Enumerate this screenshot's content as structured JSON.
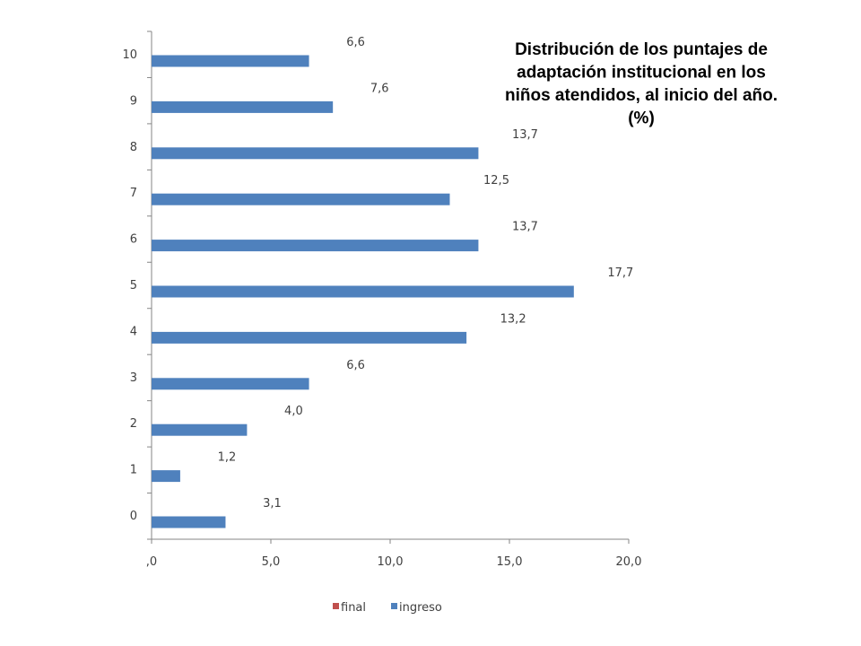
{
  "chart_data": {
    "type": "bar",
    "orientation": "horizontal",
    "title_lines": [
      "Distribución de los puntajes de",
      "adaptación institucional en los",
      "niños atendidos, al inicio del año.",
      "(%)"
    ],
    "categories": [
      "0",
      "1",
      "2",
      "3",
      "4",
      "5",
      "6",
      "7",
      "8",
      "9",
      "10"
    ],
    "series": [
      {
        "name": "final",
        "color": "#c0504d",
        "values": [
          null,
          null,
          null,
          null,
          null,
          null,
          null,
          null,
          null,
          null,
          null
        ]
      },
      {
        "name": "ingreso",
        "color": "#4f81bd",
        "values": [
          3.1,
          1.2,
          4.0,
          6.6,
          13.2,
          17.7,
          13.7,
          12.5,
          13.7,
          7.6,
          6.6
        ]
      }
    ],
    "data_labels": [
      "3,1",
      "1,2",
      "4,0",
      "6,6",
      "13,2",
      "17,7",
      "13,7",
      "12,5",
      "13,7",
      "7,6",
      "6,6"
    ],
    "xlim": [
      0,
      20
    ],
    "x_ticks": [
      0,
      5,
      10,
      15,
      20
    ],
    "x_tick_labels": [
      ",0",
      "5,0",
      "10,0",
      "15,0",
      "20,0"
    ],
    "xlabel": "",
    "ylabel": "",
    "grid": false,
    "legend_position": "bottom"
  }
}
